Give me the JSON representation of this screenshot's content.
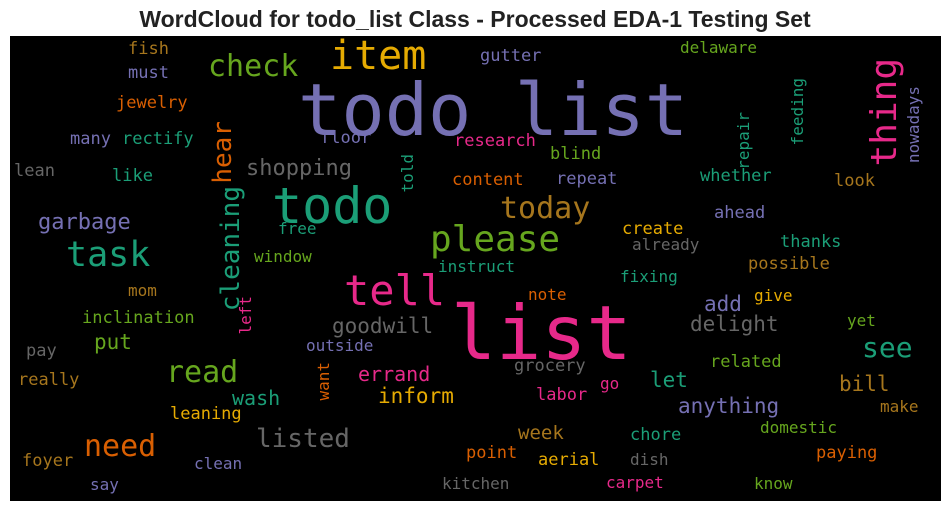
{
  "title": "WordCloud for todo_list Class - Processed EDA-1 Testing Set",
  "colors": {
    "purple": "#7570b3",
    "pink": "#e7298a",
    "green": "#66a61e",
    "teal": "#1b9e77",
    "orange": "#d95f02",
    "gold": "#e6ab02",
    "brown": "#a6761d",
    "gray": "#666666"
  },
  "chart_data": {
    "type": "wordcloud",
    "title": "WordCloud for todo_list Class - Processed EDA-1 Testing Set",
    "words": [
      {
        "text": "todo list",
        "weight": 1.0,
        "color": "#7570b3",
        "vertical": false
      },
      {
        "text": "list",
        "weight": 0.9,
        "color": "#e7298a",
        "vertical": false
      },
      {
        "text": "todo",
        "weight": 0.65,
        "color": "#1b9e77",
        "vertical": false
      },
      {
        "text": "item",
        "weight": 0.55,
        "color": "#e6ab02",
        "vertical": false
      },
      {
        "text": "tell",
        "weight": 0.55,
        "color": "#e7298a",
        "vertical": false
      },
      {
        "text": "please",
        "weight": 0.5,
        "color": "#66a61e",
        "vertical": false
      },
      {
        "text": "task",
        "weight": 0.45,
        "color": "#1b9e77",
        "vertical": false
      },
      {
        "text": "check",
        "weight": 0.4,
        "color": "#66a61e",
        "vertical": false
      },
      {
        "text": "thing",
        "weight": 0.45,
        "color": "#e7298a",
        "vertical": true
      },
      {
        "text": "today",
        "weight": 0.4,
        "color": "#a6761d",
        "vertical": false
      },
      {
        "text": "read",
        "weight": 0.4,
        "color": "#66a61e",
        "vertical": false
      },
      {
        "text": "need",
        "weight": 0.4,
        "color": "#d95f02",
        "vertical": false
      },
      {
        "text": "see",
        "weight": 0.35,
        "color": "#1b9e77",
        "vertical": false
      },
      {
        "text": "cleaning",
        "weight": 0.33,
        "color": "#1b9e77",
        "vertical": true
      },
      {
        "text": "hear",
        "weight": 0.33,
        "color": "#d95f02",
        "vertical": true
      },
      {
        "text": "listed",
        "weight": 0.33,
        "color": "#666666",
        "vertical": false
      },
      {
        "text": "garbage",
        "weight": 0.28,
        "color": "#7570b3",
        "vertical": false
      },
      {
        "text": "shopping",
        "weight": 0.28,
        "color": "#666666",
        "vertical": false
      },
      {
        "text": "goodwill",
        "weight": 0.27,
        "color": "#666666",
        "vertical": false
      },
      {
        "text": "delight",
        "weight": 0.27,
        "color": "#666666",
        "vertical": false
      },
      {
        "text": "anything",
        "weight": 0.27,
        "color": "#7570b3",
        "vertical": false
      },
      {
        "text": "put",
        "weight": 0.27,
        "color": "#66a61e",
        "vertical": false
      },
      {
        "text": "add",
        "weight": 0.27,
        "color": "#7570b3",
        "vertical": false
      },
      {
        "text": "let",
        "weight": 0.27,
        "color": "#1b9e77",
        "vertical": false
      },
      {
        "text": "bill",
        "weight": 0.27,
        "color": "#a6761d",
        "vertical": false
      },
      {
        "text": "inform",
        "weight": 0.27,
        "color": "#e6ab02",
        "vertical": false
      },
      {
        "text": "errand",
        "weight": 0.25,
        "color": "#e7298a",
        "vertical": false
      },
      {
        "text": "wash",
        "weight": 0.25,
        "color": "#1b9e77",
        "vertical": false
      },
      {
        "text": "week",
        "weight": 0.24,
        "color": "#a6761d",
        "vertical": false
      },
      {
        "text": "fish",
        "weight": 0.2,
        "color": "#a6761d",
        "vertical": false
      },
      {
        "text": "must",
        "weight": 0.2,
        "color": "#7570b3",
        "vertical": false
      },
      {
        "text": "jewelry",
        "weight": 0.2,
        "color": "#d95f02",
        "vertical": false
      },
      {
        "text": "many",
        "weight": 0.2,
        "color": "#7570b3",
        "vertical": false
      },
      {
        "text": "rectify",
        "weight": 0.2,
        "color": "#1b9e77",
        "vertical": false
      },
      {
        "text": "lean",
        "weight": 0.2,
        "color": "#666666",
        "vertical": false
      },
      {
        "text": "like",
        "weight": 0.2,
        "color": "#1b9e77",
        "vertical": false
      },
      {
        "text": "gutter",
        "weight": 0.2,
        "color": "#7570b3",
        "vertical": false
      },
      {
        "text": "delaware",
        "weight": 0.2,
        "color": "#66a61e",
        "vertical": false
      },
      {
        "text": "feeding",
        "weight": 0.2,
        "color": "#1b9e77",
        "vertical": true
      },
      {
        "text": "repair",
        "weight": 0.2,
        "color": "#1b9e77",
        "vertical": true
      },
      {
        "text": "floor",
        "weight": 0.2,
        "color": "#7570b3",
        "vertical": false
      },
      {
        "text": "research",
        "weight": 0.2,
        "color": "#e7298a",
        "vertical": false
      },
      {
        "text": "blind",
        "weight": 0.2,
        "color": "#66a61e",
        "vertical": false
      },
      {
        "text": "told",
        "weight": 0.2,
        "color": "#1b9e77",
        "vertical": true
      },
      {
        "text": "content",
        "weight": 0.2,
        "color": "#d95f02",
        "vertical": false
      },
      {
        "text": "repeat",
        "weight": 0.2,
        "color": "#7570b3",
        "vertical": false
      },
      {
        "text": "whether",
        "weight": 0.2,
        "color": "#1b9e77",
        "vertical": false
      },
      {
        "text": "look",
        "weight": 0.2,
        "color": "#a6761d",
        "vertical": false
      },
      {
        "text": "nowadays",
        "weight": 0.2,
        "color": "#7570b3",
        "vertical": true
      },
      {
        "text": "free",
        "weight": 0.2,
        "color": "#1b9e77",
        "vertical": false
      },
      {
        "text": "create",
        "weight": 0.2,
        "color": "#e6ab02",
        "vertical": false
      },
      {
        "text": "ahead",
        "weight": 0.2,
        "color": "#7570b3",
        "vertical": false
      },
      {
        "text": "already",
        "weight": 0.2,
        "color": "#666666",
        "vertical": false
      },
      {
        "text": "thanks",
        "weight": 0.2,
        "color": "#1b9e77",
        "vertical": false
      },
      {
        "text": "window",
        "weight": 0.2,
        "color": "#66a61e",
        "vertical": false
      },
      {
        "text": "instruct",
        "weight": 0.2,
        "color": "#1b9e77",
        "vertical": false
      },
      {
        "text": "possible",
        "weight": 0.2,
        "color": "#a6761d",
        "vertical": false
      },
      {
        "text": "fixing",
        "weight": 0.2,
        "color": "#1b9e77",
        "vertical": false
      },
      {
        "text": "mom",
        "weight": 0.2,
        "color": "#a6761d",
        "vertical": false
      },
      {
        "text": "left",
        "weight": 0.2,
        "color": "#e7298a",
        "vertical": true
      },
      {
        "text": "note",
        "weight": 0.2,
        "color": "#d95f02",
        "vertical": false
      },
      {
        "text": "give",
        "weight": 0.2,
        "color": "#e6ab02",
        "vertical": false
      },
      {
        "text": "inclination",
        "weight": 0.2,
        "color": "#66a61e",
        "vertical": false
      },
      {
        "text": "yet",
        "weight": 0.2,
        "color": "#66a61e",
        "vertical": false
      },
      {
        "text": "pay",
        "weight": 0.2,
        "color": "#666666",
        "vertical": false
      },
      {
        "text": "outside",
        "weight": 0.2,
        "color": "#7570b3",
        "vertical": false
      },
      {
        "text": "grocery",
        "weight": 0.2,
        "color": "#666666",
        "vertical": false
      },
      {
        "text": "related",
        "weight": 0.2,
        "color": "#66a61e",
        "vertical": false
      },
      {
        "text": "really",
        "weight": 0.2,
        "color": "#a6761d",
        "vertical": false
      },
      {
        "text": "want",
        "weight": 0.2,
        "color": "#d95f02",
        "vertical": true
      },
      {
        "text": "go",
        "weight": 0.2,
        "color": "#e7298a",
        "vertical": false
      },
      {
        "text": "make",
        "weight": 0.2,
        "color": "#a6761d",
        "vertical": false
      },
      {
        "text": "leaning",
        "weight": 0.2,
        "color": "#e6ab02",
        "vertical": false
      },
      {
        "text": "labor",
        "weight": 0.2,
        "color": "#e7298a",
        "vertical": false
      },
      {
        "text": "domestic",
        "weight": 0.2,
        "color": "#66a61e",
        "vertical": false
      },
      {
        "text": "chore",
        "weight": 0.2,
        "color": "#1b9e77",
        "vertical": false
      },
      {
        "text": "paying",
        "weight": 0.2,
        "color": "#d95f02",
        "vertical": false
      },
      {
        "text": "foyer",
        "weight": 0.2,
        "color": "#a6761d",
        "vertical": false
      },
      {
        "text": "clean",
        "weight": 0.2,
        "color": "#7570b3",
        "vertical": false
      },
      {
        "text": "point",
        "weight": 0.2,
        "color": "#d95f02",
        "vertical": false
      },
      {
        "text": "aerial",
        "weight": 0.2,
        "color": "#e6ab02",
        "vertical": false
      },
      {
        "text": "dish",
        "weight": 0.2,
        "color": "#666666",
        "vertical": false
      },
      {
        "text": "say",
        "weight": 0.2,
        "color": "#7570b3",
        "vertical": false
      },
      {
        "text": "kitchen",
        "weight": 0.2,
        "color": "#666666",
        "vertical": false
      },
      {
        "text": "carpet",
        "weight": 0.2,
        "color": "#e7298a",
        "vertical": false
      },
      {
        "text": "know",
        "weight": 0.2,
        "color": "#66a61e",
        "vertical": false
      }
    ]
  }
}
